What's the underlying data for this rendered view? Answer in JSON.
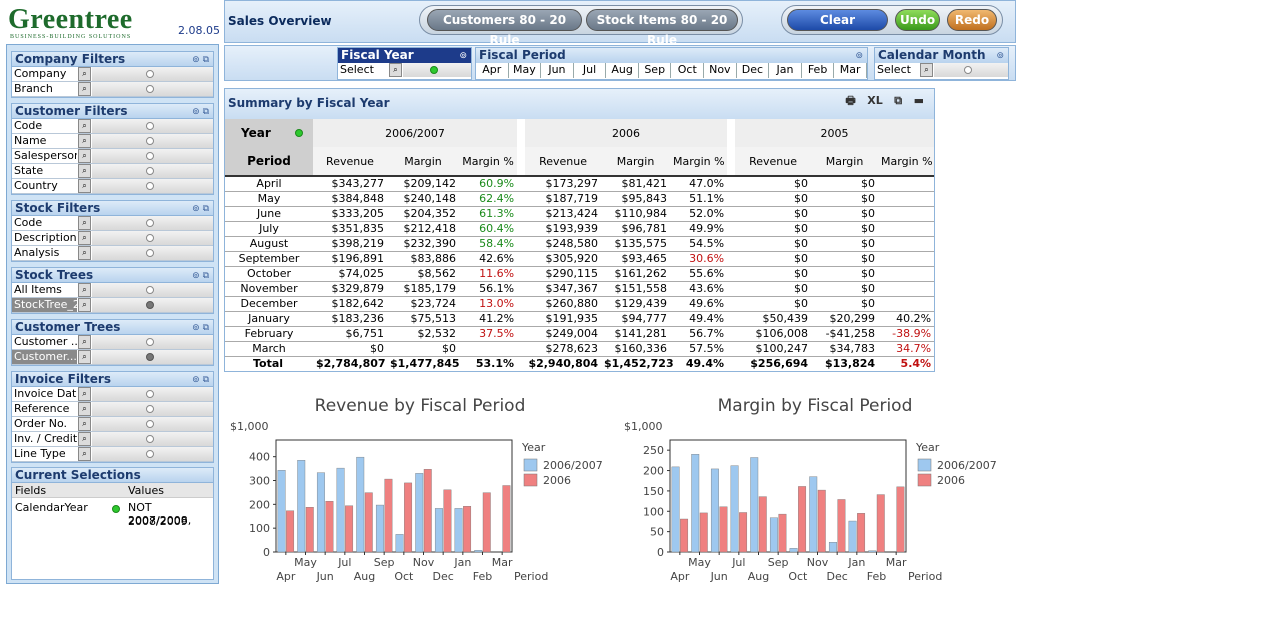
{
  "brand": {
    "name": "Greentree",
    "tagline": "BUSINESS-BUILDING SOLUTIONS",
    "version": "2.08.05"
  },
  "header": {
    "title": "Sales Overview",
    "buttons": {
      "customers_rule": "Customers 80 - 20 Rule",
      "stock_rule": "Stock Items 80 - 20 Rule",
      "clear": "Clear",
      "undo": "Undo",
      "redo": "Redo"
    }
  },
  "filters": {
    "fiscal_year": {
      "title": "Fiscal Year",
      "value": "Select"
    },
    "fiscal_period": {
      "title": "Fiscal Period",
      "months": [
        "Apr",
        "May",
        "Jun",
        "Jul",
        "Aug",
        "Sep",
        "Oct",
        "Nov",
        "Dec",
        "Jan",
        "Feb",
        "Mar"
      ]
    },
    "calendar_month": {
      "title": "Calendar Month",
      "value": "Select"
    }
  },
  "left_panels": [
    {
      "title": "Company Filters",
      "rows": [
        "Company",
        "Branch"
      ]
    },
    {
      "title": "Customer Filters",
      "rows": [
        "Code",
        "Name",
        "Salesperson",
        "State",
        "Country"
      ]
    },
    {
      "title": "Stock Filters",
      "rows": [
        "Code",
        "Description",
        "Analysis"
      ]
    },
    {
      "title": "Stock Trees",
      "rows": [
        "All Items",
        "StockTree_2"
      ]
    },
    {
      "title": "Customer Trees",
      "rows": [
        "Customer ...",
        "Customer..."
      ]
    },
    {
      "title": "Invoice Filters",
      "rows": [
        "Invoice Date",
        "Reference",
        "Order No.",
        "Inv. / Credit",
        "Line Type"
      ]
    }
  ],
  "current_selections": {
    "title": "Current Selections",
    "col_fields": "Fields",
    "col_values": "Values",
    "field": "CalendarYear",
    "value_line1": "NOT 2007/2008,",
    "value_line2": "2008/2009"
  },
  "summary": {
    "title": "Summary by Fiscal Year",
    "icons": {
      "print": "🖶",
      "xl": "XL",
      "copy": "⧉",
      "min": "▬"
    },
    "year_label": "Year",
    "period_label": "Period",
    "years": [
      "2006/2007",
      "2006",
      "2005"
    ],
    "cols": [
      "Revenue",
      "Margin",
      "Margin %"
    ],
    "rows": [
      {
        "p": "April",
        "a": [
          "$343,277",
          "$209,142",
          "60.9%"
        ],
        "b": [
          "$173,297",
          "$81,421",
          "47.0%"
        ],
        "c": [
          "$0",
          "$0",
          ""
        ]
      },
      {
        "p": "May",
        "a": [
          "$384,848",
          "$240,148",
          "62.4%"
        ],
        "b": [
          "$187,719",
          "$95,843",
          "51.1%"
        ],
        "c": [
          "$0",
          "$0",
          ""
        ]
      },
      {
        "p": "June",
        "a": [
          "$333,205",
          "$204,352",
          "61.3%"
        ],
        "b": [
          "$213,424",
          "$110,984",
          "52.0%"
        ],
        "c": [
          "$0",
          "$0",
          ""
        ]
      },
      {
        "p": "July",
        "a": [
          "$351,835",
          "$212,418",
          "60.4%"
        ],
        "b": [
          "$193,939",
          "$96,781",
          "49.9%"
        ],
        "c": [
          "$0",
          "$0",
          ""
        ]
      },
      {
        "p": "August",
        "a": [
          "$398,219",
          "$232,390",
          "58.4%"
        ],
        "b": [
          "$248,580",
          "$135,575",
          "54.5%"
        ],
        "c": [
          "$0",
          "$0",
          ""
        ]
      },
      {
        "p": "September",
        "a": [
          "$196,891",
          "$83,886",
          "42.6%"
        ],
        "b": [
          "$305,920",
          "$93,465",
          "30.6%"
        ],
        "c": [
          "$0",
          "$0",
          ""
        ]
      },
      {
        "p": "October",
        "a": [
          "$74,025",
          "$8,562",
          "11.6%"
        ],
        "b": [
          "$290,115",
          "$161,262",
          "55.6%"
        ],
        "c": [
          "$0",
          "$0",
          ""
        ]
      },
      {
        "p": "November",
        "a": [
          "$329,879",
          "$185,179",
          "56.1%"
        ],
        "b": [
          "$347,367",
          "$151,558",
          "43.6%"
        ],
        "c": [
          "$0",
          "$0",
          ""
        ]
      },
      {
        "p": "December",
        "a": [
          "$182,642",
          "$23,724",
          "13.0%"
        ],
        "b": [
          "$260,880",
          "$129,439",
          "49.6%"
        ],
        "c": [
          "$0",
          "$0",
          ""
        ]
      },
      {
        "p": "January",
        "a": [
          "$183,236",
          "$75,513",
          "41.2%"
        ],
        "b": [
          "$191,935",
          "$94,777",
          "49.4%"
        ],
        "c": [
          "$50,439",
          "$20,299",
          "40.2%"
        ]
      },
      {
        "p": "February",
        "a": [
          "$6,751",
          "$2,532",
          "37.5%"
        ],
        "b": [
          "$249,004",
          "$141,281",
          "56.7%"
        ],
        "c": [
          "$106,008",
          "-$41,258",
          "-38.9%"
        ]
      },
      {
        "p": "March",
        "a": [
          "$0",
          "$0",
          ""
        ],
        "b": [
          "$278,623",
          "$160,336",
          "57.5%"
        ],
        "c": [
          "$100,247",
          "$34,783",
          "34.7%"
        ]
      }
    ],
    "total": {
      "p": "Total",
      "a": [
        "$2,784,807",
        "$1,477,845",
        "53.1%"
      ],
      "b": [
        "$2,940,804",
        "$1,452,723",
        "49.4%"
      ],
      "c": [
        "$256,694",
        "$13,824",
        "5.4%"
      ]
    },
    "colors": {
      "green": "#1a8a1a",
      "red": "#c01010"
    }
  },
  "chart_data": [
    {
      "type": "bar",
      "title": "Revenue by Fiscal Period",
      "unit_label": "$1,000",
      "xlabel": "Period",
      "legend_title": "Year",
      "categories": [
        "Apr",
        "May",
        "Jun",
        "Jul",
        "Aug",
        "Sep",
        "Oct",
        "Nov",
        "Dec",
        "Jan",
        "Feb",
        "Mar"
      ],
      "series": [
        {
          "name": "2006/2007",
          "values": [
            343,
            385,
            333,
            352,
            398,
            197,
            74,
            330,
            183,
            183,
            7,
            0
          ],
          "color": "#9ec8ef"
        },
        {
          "name": "2006",
          "values": [
            173,
            188,
            213,
            194,
            249,
            306,
            290,
            347,
            261,
            192,
            249,
            279
          ],
          "color": "#ef8080"
        }
      ],
      "ylim": [
        0,
        470
      ],
      "yticks": [
        0,
        100,
        200,
        300,
        400
      ],
      "legend": "right"
    },
    {
      "type": "bar",
      "title": "Margin by Fiscal Period",
      "unit_label": "$1,000",
      "xlabel": "Period",
      "legend_title": "Year",
      "categories": [
        "Apr",
        "May",
        "Jun",
        "Jul",
        "Aug",
        "Sep",
        "Oct",
        "Nov",
        "Dec",
        "Jan",
        "Feb",
        "Mar"
      ],
      "series": [
        {
          "name": "2006/2007",
          "values": [
            209,
            240,
            204,
            212,
            232,
            84,
            9,
            185,
            24,
            76,
            3,
            0
          ],
          "color": "#9ec8ef"
        },
        {
          "name": "2006",
          "values": [
            81,
            96,
            111,
            97,
            136,
            93,
            161,
            152,
            129,
            95,
            141,
            160
          ],
          "color": "#ef8080"
        }
      ],
      "ylim": [
        0,
        275
      ],
      "yticks": [
        0,
        50,
        100,
        150,
        200,
        250
      ],
      "legend": "right"
    }
  ]
}
